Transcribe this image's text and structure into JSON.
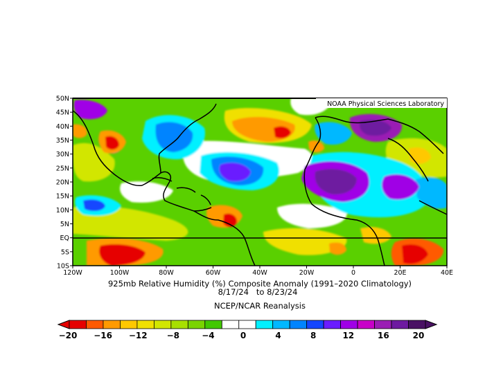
{
  "credit": "NOAA Physical Sciences Laboratory",
  "caption": {
    "line1": "925mb Relative Humidity (%) Composite Anomaly (1991–2020 Climatology)",
    "line2": "8/17/24   to 8/23/24",
    "line3": "NCEP/NCAR Reanalysis"
  },
  "lat_labels": [
    "50N",
    "45N",
    "40N",
    "35N",
    "30N",
    "25N",
    "20N",
    "15N",
    "10N",
    "5N",
    "EQ",
    "5S",
    "10S"
  ],
  "lon_labels": [
    "120W",
    "100W",
    "80W",
    "60W",
    "40W",
    "20W",
    "0",
    "20E",
    "40E"
  ],
  "colorbar": {
    "tick_labels": [
      "−20",
      "−16",
      "−12",
      "−8",
      "−4",
      "0",
      "4",
      "8",
      "12",
      "16",
      "20"
    ],
    "colors": [
      "#e60000",
      "#ff5a00",
      "#ff9a00",
      "#ffc800",
      "#f0e000",
      "#d2e600",
      "#a8e000",
      "#7ad400",
      "#42c800",
      "#ffffff",
      "#ffffff",
      "#00f0ff",
      "#00b8ff",
      "#0084ff",
      "#1446ff",
      "#6a1cff",
      "#a000e6",
      "#c800c8",
      "#9a1eb4",
      "#6e1aa0",
      "#4a1264"
    ],
    "under_color": "#e60000",
    "over_color": "#4a1264"
  },
  "map": {
    "lon_range": [
      -120,
      40
    ],
    "lat_range": [
      -10,
      50
    ],
    "background_color": "#5ad000"
  }
}
